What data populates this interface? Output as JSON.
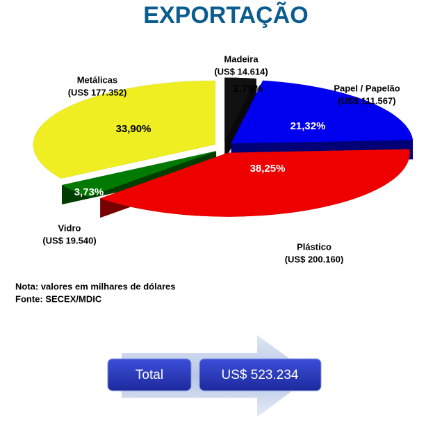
{
  "chart_data": {
    "type": "pie",
    "title": "EXPORTAÇÃO",
    "categories": [
      "Madeira",
      "Papel / Papelão",
      "Plástico",
      "Vidro",
      "Metálicas"
    ],
    "amounts": [
      "(US$ 14.614)",
      "(US$ 111.567)",
      "(US$ 200.160)",
      "(US$ 19.540)",
      "(US$ 177.352)"
    ],
    "values": [
      2.79,
      21.32,
      38.25,
      3.73,
      33.9
    ],
    "value_labels": [
      "2,79%",
      "21,32%",
      "38,25%",
      "3,73%",
      "33,90%"
    ],
    "colors": [
      "#111111",
      "#0000ee",
      "#ee0000",
      "#007a00",
      "#eeee22"
    ]
  },
  "notes": [
    "Nota: valores em milhares de dólares",
    "Fonte: SECEX/MDIC"
  ],
  "total": {
    "label": "Total",
    "value": "US$ 523.234"
  }
}
